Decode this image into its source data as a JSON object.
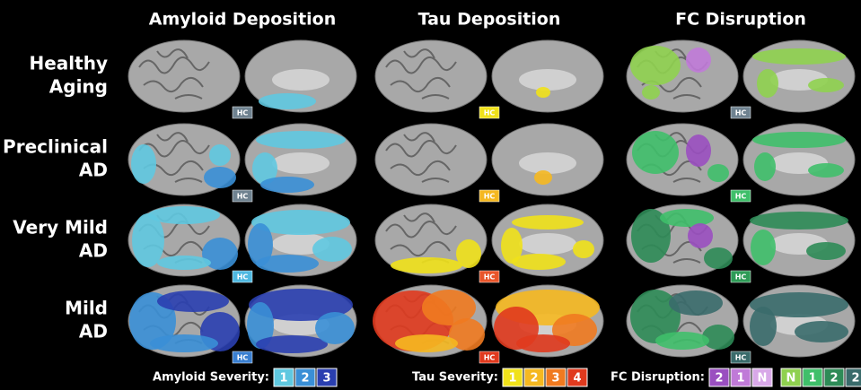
{
  "columns": [
    "Amyloid Deposition",
    "Tau Deposition",
    "FC Disruption"
  ],
  "rows": [
    {
      "label": [
        "Healthy",
        "Aging"
      ],
      "badges": [
        {
          "text": "HC",
          "color": "#6f8290"
        },
        {
          "text": "HC",
          "color": "#f0e11a"
        },
        {
          "text": "HC",
          "color": "#6f8290"
        }
      ]
    },
    {
      "label": [
        "Preclinical",
        "AD"
      ],
      "badges": [
        {
          "text": "HC",
          "color": "#6f8290"
        },
        {
          "text": "HC",
          "color": "#f5b820"
        },
        {
          "text": "HC",
          "color": "#3fbf6a"
        }
      ]
    },
    {
      "label": [
        "Very Mild",
        "AD"
      ],
      "badges": [
        {
          "text": "HC",
          "color": "#4fb8e0"
        },
        {
          "text": "HC",
          "color": "#e8552a"
        },
        {
          "text": "HC",
          "color": "#2e9b57"
        }
      ]
    },
    {
      "label": [
        "Mild",
        "AD"
      ],
      "badges": [
        {
          "text": "HC",
          "color": "#3a7fd0"
        },
        {
          "text": "HC",
          "color": "#e03a1e"
        },
        {
          "text": "HC",
          "color": "#3a6b6b"
        }
      ]
    }
  ],
  "legends": [
    {
      "label": "Amyloid Severity:",
      "items": [
        {
          "text": "1",
          "color": "#5fc8e0"
        },
        {
          "text": "2",
          "color": "#3a8fd6"
        },
        {
          "text": "3",
          "color": "#2a3fb0"
        }
      ]
    },
    {
      "label": "Tau Severity:",
      "items": [
        {
          "text": "1",
          "color": "#f0e11a"
        },
        {
          "text": "2",
          "color": "#f5b820"
        },
        {
          "text": "3",
          "color": "#f07a20"
        },
        {
          "text": "4",
          "color": "#e03a1e"
        }
      ]
    },
    {
      "label": "FC Disruption:",
      "items": [
        {
          "text": "2",
          "color": "#9a4fc0"
        },
        {
          "text": "1",
          "color": "#c07ad8"
        },
        {
          "text": "N",
          "color": "#d8a8e8"
        },
        {
          "text": "N",
          "color": "#8fd14f"
        },
        {
          "text": "1",
          "color": "#3fbf6a"
        },
        {
          "text": "2",
          "color": "#2e8b57"
        },
        {
          "text": "2",
          "color": "#3a6b6b"
        }
      ]
    }
  ]
}
